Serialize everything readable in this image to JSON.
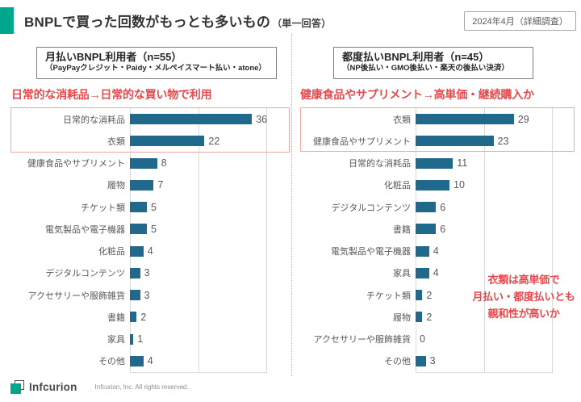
{
  "colors": {
    "accent": "#00a78e",
    "bar": "#20698c",
    "red": "#e8484b",
    "highlight_border": "#f2a8a2",
    "gridline": "#d9d9d9"
  },
  "header": {
    "title": "BNPLで買った回数がもっとも多いもの",
    "title_suffix": "（単一回答）",
    "badge": "2024年4月（詳細調査）"
  },
  "left_panel": {
    "box_title": "月払いBNPL利用者（n=55）",
    "box_subtitle": "（PayPayクレジット・Paidy・メルペイスマート払い・atone）",
    "annotation": "日常的な消耗品→日常的な買い物で利用"
  },
  "right_panel": {
    "box_title": "都度払いBNPL利用者（n=45）",
    "box_subtitle": "（NP後払い・GMO後払い・楽天の後払い決済）",
    "annotation": "健康食品やサプリメント→高単価・継続購入か",
    "note_lines": [
      "衣類は高単価で",
      "月払い・都度払いとも",
      "親和性が高いか"
    ]
  },
  "footer": {
    "logo_text": "Infcurion",
    "copyright": "Infcurion, Inc.  All rights reserved."
  },
  "chart_data": [
    {
      "type": "bar",
      "orientation": "horizontal",
      "title": "月払いBNPL利用者（n=55）",
      "subtitle": "（PayPayクレジット・Paidy・メルペイスマート払い・atone）",
      "categories": [
        "日常的な消耗品",
        "衣類",
        "健康食品やサプリメント",
        "履物",
        "チケット類",
        "電気製品や電子機器",
        "化粧品",
        "デジタルコンテンツ",
        "アクセサリーや服飾雑貨",
        "書籍",
        "家具",
        "その他"
      ],
      "values": [
        36,
        22,
        8,
        7,
        5,
        5,
        4,
        3,
        3,
        2,
        1,
        4
      ],
      "xlim": [
        0,
        40
      ],
      "gridlines": [
        0,
        20,
        40
      ],
      "grid": true,
      "legend": false,
      "highlighted_categories": [
        "日常的な消耗品",
        "衣類"
      ]
    },
    {
      "type": "bar",
      "orientation": "horizontal",
      "title": "都度払いBNPL利用者（n=45）",
      "subtitle": "（NP後払い・GMO後払い・楽天の後払い決済）",
      "categories": [
        "衣類",
        "健康食品やサプリメント",
        "日常的な消耗品",
        "化粧品",
        "デジタルコンテンツ",
        "書籍",
        "電気製品や電子機器",
        "家具",
        "チケット類",
        "履物",
        "アクセサリーや服飾雑貨",
        "その他"
      ],
      "values": [
        29,
        23,
        11,
        10,
        6,
        6,
        4,
        4,
        2,
        2,
        0,
        3
      ],
      "xlim": [
        0,
        40
      ],
      "gridlines": [
        0,
        20,
        40
      ],
      "grid": true,
      "legend": false,
      "highlighted_categories": [
        "衣類",
        "健康食品やサプリメント"
      ]
    }
  ]
}
